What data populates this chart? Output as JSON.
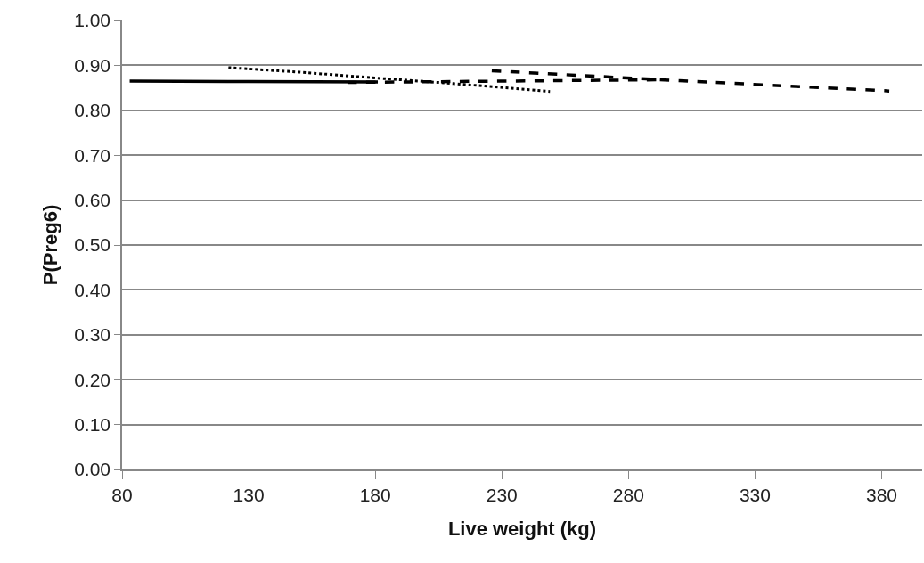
{
  "chart_data": {
    "type": "line",
    "xlabel": "Live weight (kg)",
    "ylabel": "P(Preg6)",
    "series": [
      {
        "color": "#000000",
        "line_style": "solid",
        "x": [
          83,
          130,
          181
        ],
        "values": [
          0.865,
          0.864,
          0.863
        ]
      },
      {
        "color": "#000000",
        "line_style": "dotted",
        "x": [
          122,
          150,
          180,
          210,
          249
        ],
        "values": [
          0.895,
          0.885,
          0.872,
          0.86,
          0.842
        ]
      },
      {
        "color": "#000000",
        "line_style": "dashed",
        "x": [
          169,
          230,
          292
        ],
        "values": [
          0.862,
          0.865,
          0.868
        ]
      },
      {
        "color": "#000000",
        "line_style": "dashed",
        "x": [
          226,
          300,
          383
        ],
        "values": [
          0.888,
          0.866,
          0.843
        ]
      }
    ],
    "xlim": [
      80,
      396
    ],
    "xticks": [
      80,
      130,
      180,
      230,
      280,
      330,
      380
    ],
    "ylim": [
      0,
      1
    ],
    "yticks": [
      {
        "value": 0,
        "label": "0.00"
      },
      {
        "value": 0.1,
        "label": "0.10"
      },
      {
        "value": 0.2,
        "label": "0.20"
      },
      {
        "value": 0.3,
        "label": "0.30"
      },
      {
        "value": 0.4,
        "label": "0.40"
      },
      {
        "value": 0.5,
        "label": "0.50"
      },
      {
        "value": 0.6,
        "label": "0.60"
      },
      {
        "value": 0.7,
        "label": "0.70"
      },
      {
        "value": 0.8,
        "label": "0.80"
      },
      {
        "value": 0.9,
        "label": "0.90"
      },
      {
        "value": 1,
        "label": "1.00"
      }
    ],
    "grid": "y",
    "marker": "none"
  }
}
